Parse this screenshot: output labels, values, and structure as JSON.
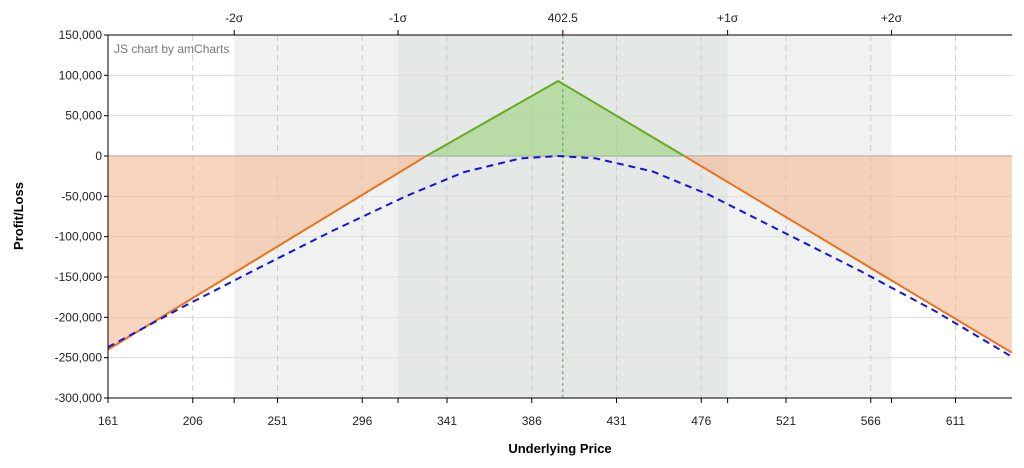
{
  "chart_data": {
    "type": "area",
    "credit": "JS chart by amCharts",
    "xlabel": "Underlying Price",
    "ylabel": "Profit/Loss",
    "xlim": [
      161,
      641
    ],
    "ylim": [
      -300000,
      150000
    ],
    "x_ticks": [
      161,
      206,
      251,
      296,
      341,
      386,
      431,
      476,
      521,
      566,
      611
    ],
    "y_ticks": [
      150000,
      100000,
      50000,
      0,
      -50000,
      -100000,
      -150000,
      -200000,
      -250000,
      -300000
    ],
    "y_tick_labels": [
      "150,000",
      "100,000",
      "50,000",
      "0",
      "-50,000",
      "-100,000",
      "-150,000",
      "-200,000",
      "-250,000",
      "-300,000"
    ],
    "current_price": {
      "value": 402.5,
      "label": "402.5"
    },
    "sigma_markers": [
      {
        "label": "-2σ",
        "value": 228
      },
      {
        "label": "-1σ",
        "value": 315
      },
      {
        "label": "+1σ",
        "value": 490
      },
      {
        "label": "+2σ",
        "value": 577
      }
    ],
    "grid": true,
    "series": [
      {
        "style": "solid",
        "color_profit": "#66aa22",
        "color_loss": "#e8731e",
        "x": [
          161,
          330,
          400,
          467,
          641
        ],
        "y": [
          -240000,
          0,
          93000,
          0,
          -244000
        ]
      },
      {
        "style": "dashed",
        "color": "#1414d2",
        "x": [
          161,
          200,
          240,
          280,
          320,
          350,
          380,
          400,
          420,
          450,
          480,
          520,
          560,
          600,
          641
        ],
        "y": [
          -237000,
          -188000,
          -140000,
          -93000,
          -49000,
          -20000,
          -3000,
          0,
          -3000,
          -19000,
          -48000,
          -95000,
          -142000,
          -192000,
          -249000
        ]
      }
    ],
    "colors": {
      "loss_fill": "#f4b994",
      "profit_fill": "#9dd27c",
      "band_1sigma": "#e4e8e6",
      "band_2sigma": "#eff2f0",
      "current_line": "#44aa44"
    }
  }
}
